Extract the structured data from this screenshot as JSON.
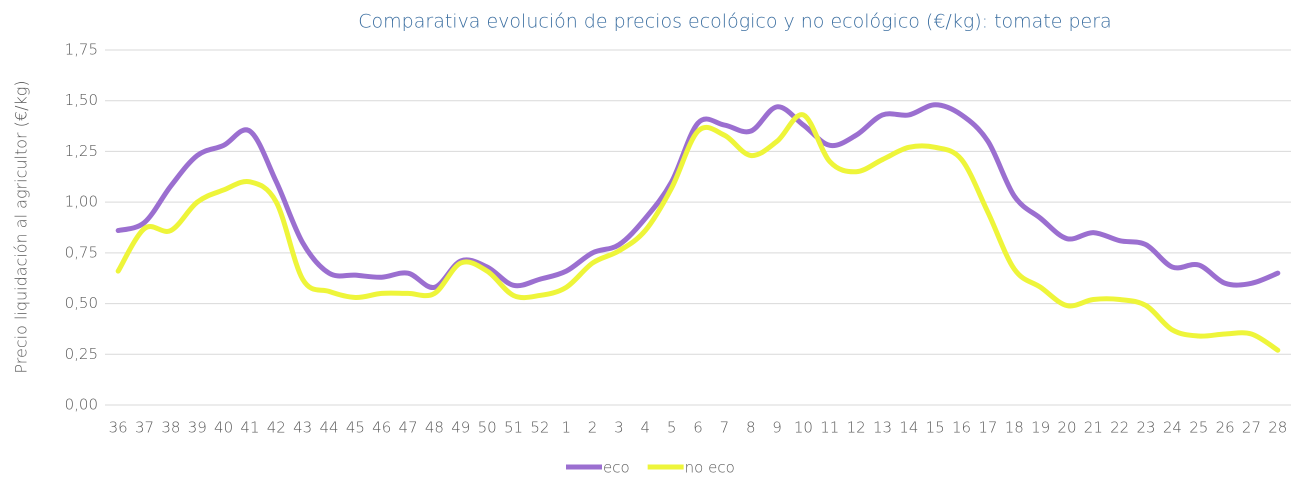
{
  "chart_data": {
    "type": "line",
    "title": "Comparativa evolución de precios ecológico y no ecológico (€/kg): tomate pera",
    "y_label": "Precio liquidación al agricultor (€/kg)",
    "categories": [
      "36",
      "37",
      "38",
      "39",
      "40",
      "41",
      "42",
      "43",
      "44",
      "45",
      "46",
      "47",
      "48",
      "49",
      "50",
      "51",
      "52",
      "1",
      "2",
      "3",
      "4",
      "5",
      "6",
      "7",
      "8",
      "9",
      "10",
      "11",
      "12",
      "13",
      "14",
      "15",
      "16",
      "17",
      "18",
      "19",
      "20",
      "21",
      "22",
      "23",
      "24",
      "25",
      "26",
      "27",
      "28"
    ],
    "series": [
      {
        "name": "eco",
        "color": "#9b6fd0",
        "values": [
          0.86,
          0.9,
          1.08,
          1.23,
          1.28,
          1.35,
          1.1,
          0.8,
          0.65,
          0.64,
          0.63,
          0.65,
          0.58,
          0.71,
          0.68,
          0.59,
          0.62,
          0.66,
          0.75,
          0.79,
          0.92,
          1.1,
          1.39,
          1.38,
          1.35,
          1.47,
          1.38,
          1.28,
          1.33,
          1.43,
          1.43,
          1.48,
          1.43,
          1.3,
          1.03,
          0.92,
          0.82,
          0.85,
          0.81,
          0.79,
          0.68,
          0.69,
          0.6,
          0.6,
          0.65
        ]
      },
      {
        "name": "no eco",
        "color": "#eef53a",
        "values": [
          0.66,
          0.87,
          0.86,
          1.0,
          1.06,
          1.1,
          1.0,
          0.62,
          0.56,
          0.53,
          0.55,
          0.55,
          0.55,
          0.7,
          0.66,
          0.54,
          0.54,
          0.58,
          0.7,
          0.76,
          0.86,
          1.07,
          1.35,
          1.33,
          1.23,
          1.3,
          1.43,
          1.2,
          1.15,
          1.21,
          1.27,
          1.27,
          1.21,
          0.95,
          0.67,
          0.58,
          0.49,
          0.52,
          0.52,
          0.49,
          0.37,
          0.34,
          0.35,
          0.35,
          0.27
        ]
      }
    ],
    "ylim": [
      0,
      1.75
    ],
    "yticks": [
      {
        "value": 0,
        "label": "0,00"
      },
      {
        "value": 0.25,
        "label": "0,25"
      },
      {
        "value": 0.5,
        "label": "0,50"
      },
      {
        "value": 0.75,
        "label": "0,75"
      },
      {
        "value": 1,
        "label": "1,00"
      },
      {
        "value": 1.25,
        "label": "1,25"
      },
      {
        "value": 1.5,
        "label": "1,50"
      },
      {
        "value": 1.75,
        "label": "1,75"
      }
    ],
    "grid": true,
    "legend": "bottom"
  }
}
